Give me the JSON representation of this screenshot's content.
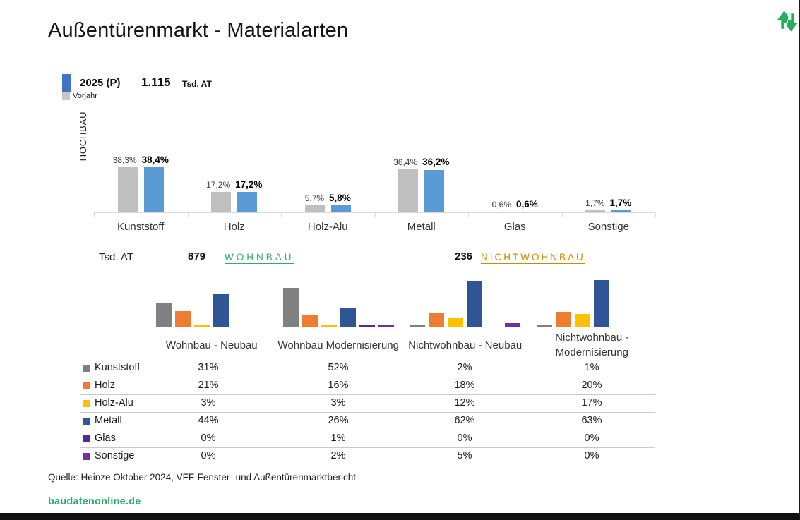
{
  "title": "Außentürenmarkt - Materialarten",
  "logo": {
    "icon": "house-swap-arrows",
    "color": "#27AE60"
  },
  "legend": {
    "current_label": "2025 (P)",
    "current_total": "1.115",
    "current_unit": "Tsd. AT",
    "previous_label": "Vorjahr",
    "current_color": "#4472C4",
    "previous_color": "#C6C6C6"
  },
  "hochbau_label": "HOCHBAU",
  "chart_data": [
    {
      "type": "bar",
      "title": "HOCHBAU - Materialanteile Außentüren",
      "categories": [
        "Kunststoff",
        "Holz",
        "Holz-Alu",
        "Metall",
        "Glas",
        "Sonstige"
      ],
      "series": [
        {
          "name": "Vorjahr",
          "color": "#BFBFBF",
          "values": [
            38.3,
            17.2,
            5.7,
            36.4,
            0.6,
            1.7
          ],
          "labels": [
            "38,3%",
            "17,2%",
            "5,7%",
            "36,4%",
            "0,6%",
            "1,7%"
          ]
        },
        {
          "name": "2025 (P)",
          "color": "#5B9BD5",
          "values": [
            38.4,
            17.2,
            5.8,
            36.2,
            0.6,
            1.7
          ],
          "labels": [
            "38,4%",
            "17,2%",
            "5,8%",
            "36,2%",
            "0,6%",
            "1,7%"
          ]
        }
      ],
      "ylim": [
        0,
        45
      ],
      "grid": false,
      "value_labels": true,
      "legend_position": "top-left"
    },
    {
      "type": "bar",
      "title": "Materialanteile nach Bausegment",
      "categories": [
        "Wohnbau - Neubau",
        "Wohnbau Modernisierung",
        "Nichtwohnbau - Neubau",
        "Nichtwohnbau -\nModernisierung"
      ],
      "series": [
        {
          "name": "Kunststoff",
          "color": "#808080",
          "values": [
            31,
            52,
            2,
            1
          ]
        },
        {
          "name": "Holz",
          "color": "#ED7D31",
          "values": [
            21,
            16,
            18,
            20
          ]
        },
        {
          "name": "Holz-Alu",
          "color": "#FFC000",
          "values": [
            3,
            3,
            12,
            17
          ]
        },
        {
          "name": "Metall",
          "color": "#2F5597",
          "values": [
            44,
            26,
            62,
            63
          ]
        },
        {
          "name": "Glas",
          "color": "#4F2D8A",
          "values": [
            0,
            1,
            0,
            0
          ]
        },
        {
          "name": "Sonstige",
          "color": "#7030A0",
          "values": [
            0,
            2,
            5,
            0
          ]
        }
      ],
      "ylim": [
        0,
        70
      ],
      "grid": false,
      "value_labels": false
    }
  ],
  "segment_header": {
    "unit": "Tsd. AT",
    "wohnbau_value": "879",
    "wohnbau_label": "WOHNBAU",
    "wohnbau_color": "#2EAE66",
    "nichtwohnbau_value": "236",
    "nichtwohnbau_label": "NICHTWOHNBAU",
    "nichtwohnbau_color": "#BF9000"
  },
  "table": {
    "column_centers_note": "columns align under the four segment groups",
    "rows": [
      {
        "label": "Kunststoff",
        "color": "#808080",
        "values": [
          "31%",
          "52%",
          "2%",
          "1%"
        ]
      },
      {
        "label": "Holz",
        "color": "#ED7D31",
        "values": [
          "21%",
          "16%",
          "18%",
          "20%"
        ]
      },
      {
        "label": "Holz-Alu",
        "color": "#FFC000",
        "values": [
          "3%",
          "3%",
          "12%",
          "17%"
        ]
      },
      {
        "label": "Metall",
        "color": "#2F5597",
        "values": [
          "44%",
          "26%",
          "62%",
          "63%"
        ]
      },
      {
        "label": "Glas",
        "color": "#4F2D8A",
        "values": [
          "0%",
          "1%",
          "0%",
          "0%"
        ]
      },
      {
        "label": "Sonstige",
        "color": "#7030A0",
        "values": [
          "0%",
          "2%",
          "5%",
          "0%"
        ]
      }
    ]
  },
  "footer": {
    "source": "Quelle: Heinze Oktober 2024, VFF-Fenster- und Außentürenmarktbericht",
    "site": "baudatenonline.de",
    "site_color": "#2EAE66"
  }
}
